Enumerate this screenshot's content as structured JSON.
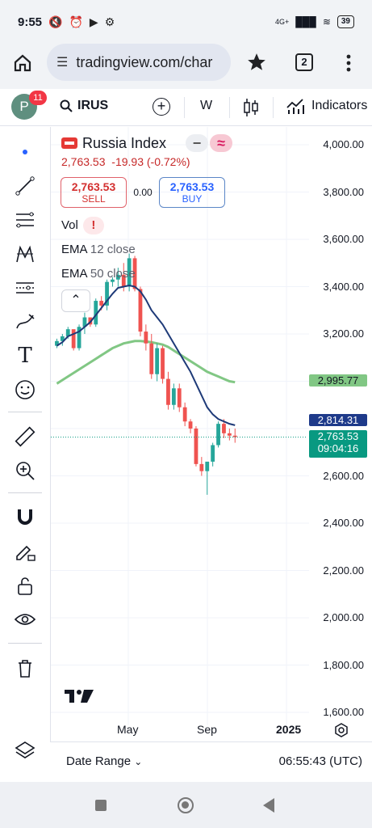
{
  "status": {
    "time": "9:55",
    "network": "4G+",
    "battery": "39"
  },
  "browser": {
    "url": "tradingview.com/char",
    "tabs_count": "2"
  },
  "toolbar": {
    "avatar_letter": "P",
    "notifications": "11",
    "symbol": "IRUS",
    "interval": "W",
    "indicators_label": "Indicators"
  },
  "legend": {
    "title": "Russia Index",
    "price": "2,763.53",
    "change": "-19.93 (-0.72%)",
    "sell_price": "2,763.53",
    "sell_label": "SELL",
    "spread": "0.00",
    "buy_price": "2,763.53",
    "buy_label": "BUY",
    "vol_label": "Vol",
    "vol_warning": "!",
    "ema12_name": "EMA",
    "ema12_params": "12 close",
    "ema50_name": "EMA",
    "ema50_params": "50 close"
  },
  "price_axis": [
    "4,000.00",
    "3,800.00",
    "3,600.00",
    "3,400.00",
    "3,200.00",
    "2,600.00",
    "2,400.00",
    "2,200.00",
    "2,000.00",
    "1,800.00",
    "1,600.00"
  ],
  "price_tags": {
    "ema50": "2,995.77",
    "ema12": "2,814.31",
    "last": "2,763.53",
    "countdown": "09:04:16"
  },
  "time_axis": {
    "may": "May",
    "sep": "Sep",
    "year": "2025"
  },
  "bottom": {
    "date_range": "Date Range",
    "clock": "06:55:43 (UTC)"
  },
  "colors": {
    "up": "#26a69a",
    "down": "#ef5350",
    "ema12": "#1e3a78",
    "ema50": "#81c784",
    "accent": "#2962ff"
  },
  "chart_data": {
    "type": "candlestick",
    "ylim": [
      1600,
      4000
    ],
    "candles": [
      [
        3150,
        3180,
        3140,
        3170
      ],
      [
        3170,
        3200,
        3150,
        3190
      ],
      [
        3190,
        3230,
        3180,
        3220
      ],
      [
        3220,
        3210,
        3130,
        3140
      ],
      [
        3140,
        3240,
        3130,
        3230
      ],
      [
        3230,
        3290,
        3200,
        3270
      ],
      [
        3270,
        3260,
        3230,
        3240
      ],
      [
        3240,
        3350,
        3230,
        3340
      ],
      [
        3340,
        3360,
        3300,
        3320
      ],
      [
        3320,
        3430,
        3300,
        3420
      ],
      [
        3420,
        3440,
        3400,
        3430
      ],
      [
        3430,
        3480,
        3400,
        3450
      ],
      [
        3450,
        3500,
        3380,
        3400
      ],
      [
        3400,
        3540,
        3380,
        3520
      ],
      [
        3520,
        3530,
        3380,
        3390
      ],
      [
        3390,
        3400,
        3190,
        3210
      ],
      [
        3210,
        3240,
        3130,
        3160
      ],
      [
        3160,
        3200,
        3010,
        3030
      ],
      [
        3030,
        3160,
        3000,
        3140
      ],
      [
        3140,
        3150,
        2990,
        3010
      ],
      [
        3010,
        3040,
        2880,
        2900
      ],
      [
        2900,
        2990,
        2880,
        2970
      ],
      [
        2970,
        2990,
        2870,
        2890
      ],
      [
        2890,
        2910,
        2810,
        2830
      ],
      [
        2830,
        2840,
        2780,
        2800
      ],
      [
        2800,
        2810,
        2640,
        2650
      ],
      [
        2650,
        2680,
        2600,
        2620
      ],
      [
        2620,
        2640,
        2520,
        2660
      ],
      [
        2660,
        2740,
        2640,
        2730
      ],
      [
        2730,
        2830,
        2720,
        2820
      ],
      [
        2820,
        2840,
        2760,
        2780
      ],
      [
        2780,
        2800,
        2750,
        2770
      ],
      [
        2770,
        2800,
        2740,
        2764
      ]
    ],
    "ema12": [
      3150,
      3165,
      3190,
      3200,
      3210,
      3230,
      3250,
      3280,
      3310,
      3340,
      3370,
      3395,
      3400,
      3405,
      3400,
      3380,
      3345,
      3300,
      3270,
      3240,
      3200,
      3160,
      3120,
      3080,
      3040,
      2990,
      2940,
      2890,
      2860,
      2840,
      2830,
      2820,
      2814
    ],
    "ema50": [
      2990,
      3005,
      3020,
      3035,
      3050,
      3065,
      3080,
      3095,
      3110,
      3125,
      3140,
      3150,
      3160,
      3165,
      3170,
      3170,
      3168,
      3165,
      3160,
      3155,
      3145,
      3130,
      3115,
      3100,
      3085,
      3070,
      3055,
      3040,
      3030,
      3020,
      3010,
      3000,
      2996
    ],
    "last_price": 2763.53
  }
}
